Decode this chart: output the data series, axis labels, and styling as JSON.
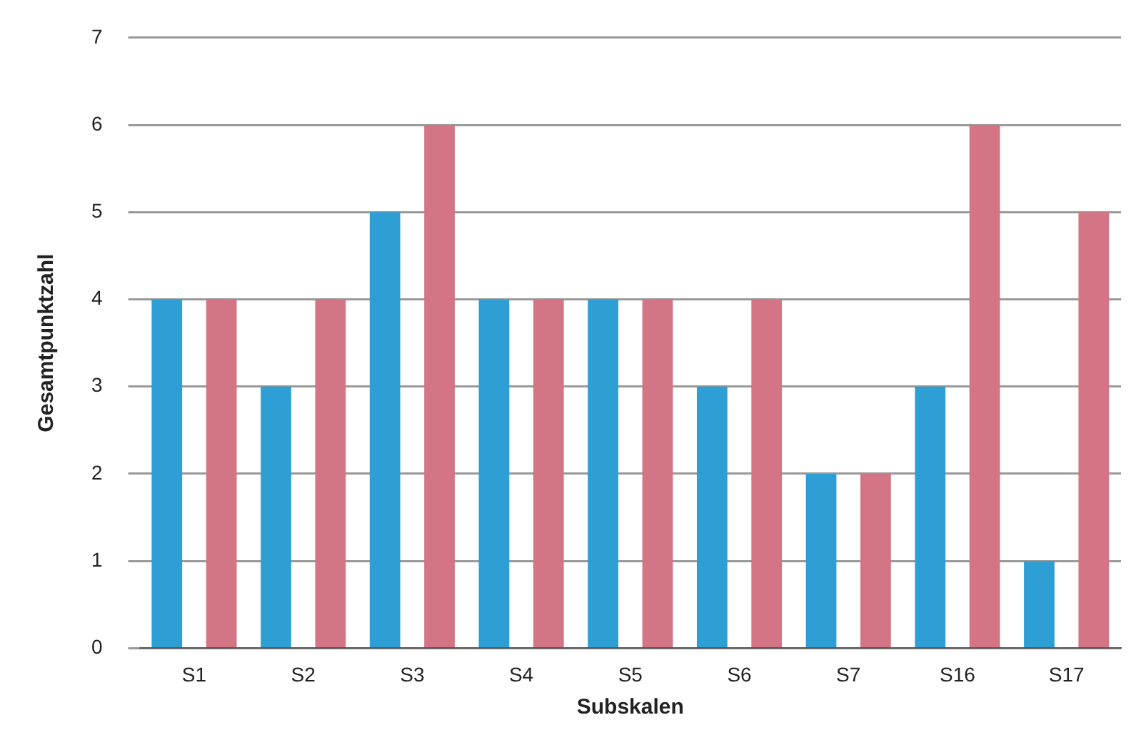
{
  "chart_data": {
    "type": "bar",
    "xlabel": "Subskalen",
    "ylabel": "Gesamtpunktzahl",
    "categories": [
      "S1",
      "S2",
      "S3",
      "S4",
      "S5",
      "S6",
      "S7",
      "S16",
      "S17"
    ],
    "series": [
      {
        "color": "#2e9fd4",
        "values": [
          4,
          3,
          5,
          4,
          4,
          3,
          2,
          3,
          1
        ]
      },
      {
        "color": "#d47585",
        "values": [
          4,
          4,
          6,
          4,
          4,
          4,
          2,
          6,
          5
        ]
      }
    ],
    "ylim": [
      0,
      7
    ],
    "yticks": [
      0,
      1,
      2,
      3,
      4,
      5,
      6,
      7
    ],
    "grid": "y",
    "legend": false
  }
}
